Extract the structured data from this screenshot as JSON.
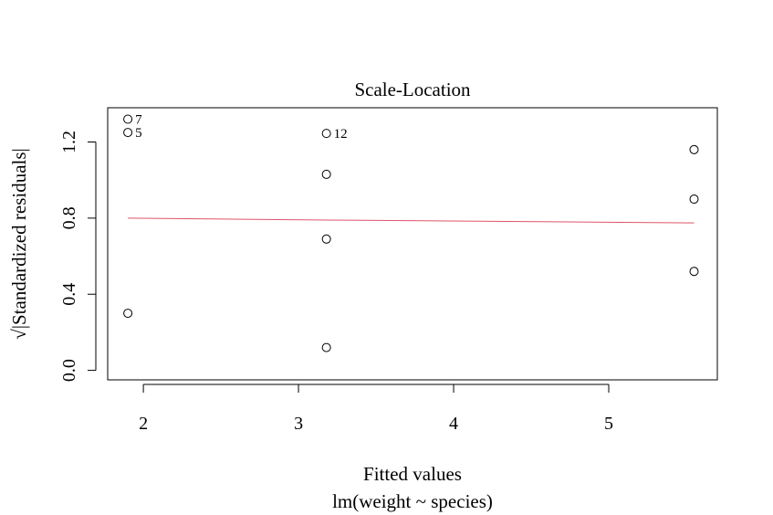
{
  "chart_data": {
    "type": "scatter",
    "title": "Scale-Location",
    "xlabel": "Fitted values",
    "xsublabel": "lm(weight ~ species)",
    "ylabel_root": "√",
    "ylabel": "|Standardized residuals|",
    "xlim": [
      1.77,
      5.7
    ],
    "ylim": [
      -0.05,
      1.38
    ],
    "xticks": [
      2,
      3,
      4,
      5
    ],
    "yticks": [
      0.0,
      0.4,
      0.8,
      1.2
    ],
    "xtick_labels": [
      "2",
      "3",
      "4",
      "5"
    ],
    "ytick_labels": [
      "0.0",
      "0.4",
      "0.8",
      "1.2"
    ],
    "grid": false,
    "points": [
      {
        "x": 1.9,
        "y": 1.32,
        "label": "7"
      },
      {
        "x": 1.9,
        "y": 1.25,
        "label": "5"
      },
      {
        "x": 1.9,
        "y": 0.3,
        "label": ""
      },
      {
        "x": 3.18,
        "y": 1.245,
        "label": "12"
      },
      {
        "x": 3.18,
        "y": 1.03,
        "label": ""
      },
      {
        "x": 3.18,
        "y": 0.69,
        "label": ""
      },
      {
        "x": 3.18,
        "y": 0.12,
        "label": ""
      },
      {
        "x": 5.55,
        "y": 1.16,
        "label": ""
      },
      {
        "x": 5.55,
        "y": 0.9,
        "label": ""
      },
      {
        "x": 5.55,
        "y": 0.52,
        "label": ""
      }
    ],
    "smooth_line": {
      "color": "#DF536B",
      "x": [
        1.9,
        3.18,
        5.55
      ],
      "y": [
        0.8,
        0.79,
        0.775
      ]
    }
  }
}
